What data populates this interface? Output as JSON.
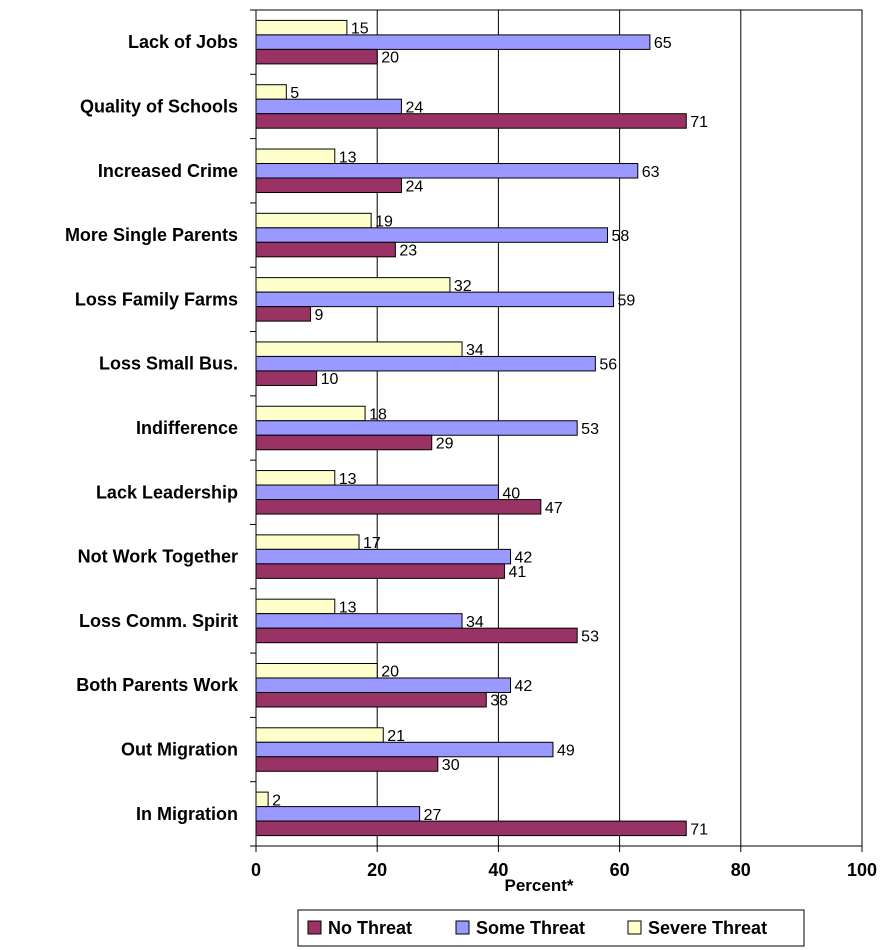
{
  "chart_data": {
    "type": "bar",
    "orientation": "horizontal",
    "categories": [
      "Lack of Jobs",
      "Quality of Schools",
      "Increased Crime",
      "More Single Parents",
      "Loss Family Farms",
      "Loss Small Bus.",
      "Indifference",
      "Lack Leadership",
      "Not Work Together",
      "Loss Comm. Spirit",
      "Both Parents Work",
      "Out Migration",
      "In Migration"
    ],
    "series": [
      {
        "name": "No Threat",
        "color": "#993366",
        "values": [
          20,
          71,
          24,
          23,
          9,
          10,
          29,
          47,
          41,
          53,
          38,
          30,
          71
        ]
      },
      {
        "name": "Some Threat",
        "color": "#9999FF",
        "values": [
          65,
          24,
          63,
          58,
          59,
          56,
          53,
          40,
          42,
          34,
          42,
          49,
          27
        ]
      },
      {
        "name": "Severe Threat",
        "color": "#FFFFCC",
        "values": [
          15,
          5,
          13,
          19,
          32,
          34,
          18,
          13,
          17,
          13,
          20,
          21,
          2
        ]
      }
    ],
    "xlabel": "Percent*",
    "xlim": [
      0,
      100
    ],
    "xticks": [
      "0",
      "20",
      "40",
      "60",
      "80",
      "100"
    ],
    "grid": true,
    "legend": "bottom"
  }
}
